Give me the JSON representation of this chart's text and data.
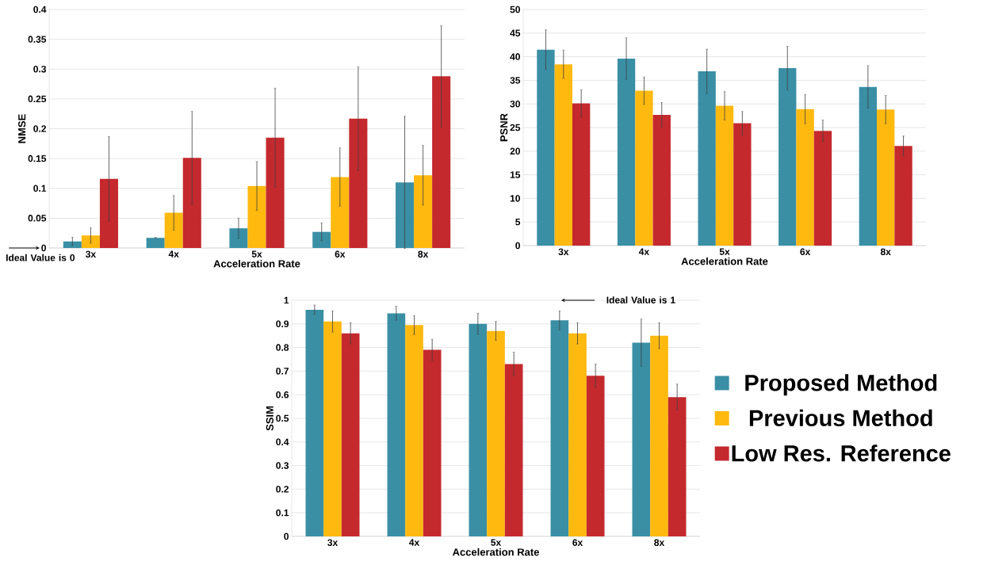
{
  "chart_data": [
    {
      "type": "bar",
      "xlabel": "Acceleration Rate",
      "ylabel": "NMSE",
      "categories": [
        "3x",
        "4x",
        "5x",
        "6x",
        "8x"
      ],
      "series": [
        {
          "color": "#3a8fa5",
          "values": [
            0.011,
            0.017,
            0.033,
            0.027,
            0.11
          ],
          "errors": [
            0.007,
            0.001,
            0.017,
            0.015,
            0.111
          ]
        },
        {
          "color": "#ffb90f",
          "values": [
            0.021,
            0.059,
            0.104,
            0.119,
            0.122
          ],
          "errors": [
            0.013,
            0.029,
            0.041,
            0.049,
            0.05
          ]
        },
        {
          "color": "#c4292e",
          "values": [
            0.116,
            0.151,
            0.185,
            0.217,
            0.288
          ],
          "errors": [
            0.071,
            0.078,
            0.083,
            0.087,
            0.085
          ]
        }
      ],
      "ylim": [
        0,
        0.4
      ],
      "yticks": [
        0,
        0.05,
        0.1,
        0.15,
        0.2,
        0.25,
        0.3,
        0.35,
        0.4
      ],
      "grid": "y",
      "annotations": [
        "Ideal Value is 0"
      ]
    },
    {
      "type": "bar",
      "xlabel": "Acceleration Rate",
      "ylabel": "PSNR",
      "categories": [
        "3x",
        "4x",
        "5x",
        "6x",
        "8x"
      ],
      "series": [
        {
          "color": "#3a8fa5",
          "values": [
            41.5,
            39.6,
            36.9,
            37.6,
            33.6
          ],
          "errors": [
            4.2,
            4.4,
            4.7,
            4.6,
            4.5
          ]
        },
        {
          "color": "#ffb90f",
          "values": [
            38.4,
            32.8,
            29.6,
            28.9,
            28.8
          ],
          "errors": [
            3.0,
            2.9,
            3.0,
            3.1,
            3.0
          ]
        },
        {
          "color": "#c4292e",
          "values": [
            30.1,
            27.7,
            25.9,
            24.3,
            21.1
          ],
          "errors": [
            2.9,
            2.6,
            2.5,
            2.3,
            2.1
          ]
        }
      ],
      "ylim": [
        0,
        50
      ],
      "yticks": [
        0,
        5,
        10,
        15,
        20,
        25,
        30,
        35,
        40,
        45,
        50
      ],
      "grid": "y"
    },
    {
      "type": "bar",
      "xlabel": "Acceleration Rate",
      "ylabel": "SSIM",
      "categories": [
        "3x",
        "4x",
        "5x",
        "6x",
        "8x"
      ],
      "series": [
        {
          "name": "Proposed Method",
          "color": "#3a8fa5",
          "values": [
            0.96,
            0.945,
            0.9,
            0.915,
            0.82
          ],
          "errors": [
            0.02,
            0.03,
            0.045,
            0.04,
            0.1
          ]
        },
        {
          "name": "Previous Method",
          "color": "#ffb90f",
          "values": [
            0.91,
            0.895,
            0.87,
            0.86,
            0.85
          ],
          "errors": [
            0.045,
            0.04,
            0.04,
            0.045,
            0.055
          ]
        },
        {
          "name": "Low Res. Reference",
          "color": "#c4292e",
          "values": [
            0.86,
            0.79,
            0.73,
            0.68,
            0.59
          ],
          "errors": [
            0.045,
            0.045,
            0.05,
            0.05,
            0.055
          ]
        }
      ],
      "ylim": [
        0,
        1
      ],
      "yticks": [
        0,
        0.1,
        0.2,
        0.3,
        0.4,
        0.5,
        0.6,
        0.7,
        0.8,
        0.9,
        1
      ],
      "grid": "y",
      "legend": "right",
      "annotations": [
        "Ideal Value is 1"
      ]
    }
  ]
}
